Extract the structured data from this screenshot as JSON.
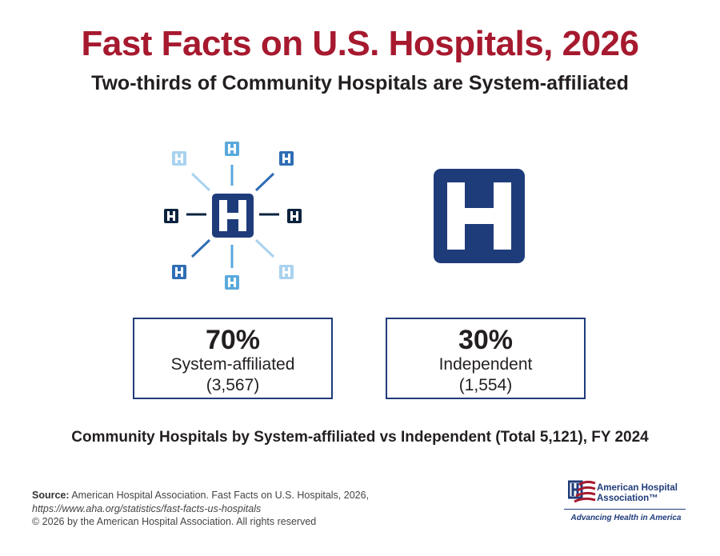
{
  "header": {
    "title": "Fast Facts on U.S. Hospitals, 2026",
    "subtitle": "Two-thirds of Community Hospitals are System-affiliated"
  },
  "icons": {
    "system": "hospital-network-icon",
    "independent": "hospital-icon",
    "letter": "H"
  },
  "stats": [
    {
      "percent": "70%",
      "label": "System-affiliated",
      "count": "(3,567)",
      "value": 70
    },
    {
      "percent": "30%",
      "label": "Independent",
      "count": "(1,554)",
      "value": 30
    }
  ],
  "caption": "Community Hospitals by System-affiliated vs Independent (Total 5,121), FY 2024",
  "footer": {
    "source_label": "Source:",
    "source_text": "American Hospital Association. Fast Facts on U.S. Hospitals, 2026,",
    "url": "https://www.aha.org/statistics/fast-facts-us-hospitals",
    "copyright": "© 2026 by the American Hospital Association. All rights reserved"
  },
  "logo": {
    "name_line1": "American Hospital",
    "name_line2": "Association™",
    "tagline": "Advancing Health in America"
  },
  "colors": {
    "title": "#a6192e",
    "navy": "#1f3c7a",
    "dark": "#0c2340",
    "mid_blue": "#2f6db5",
    "light_blue": "#5aa9dd",
    "pale_blue": "#a9d3ef"
  }
}
